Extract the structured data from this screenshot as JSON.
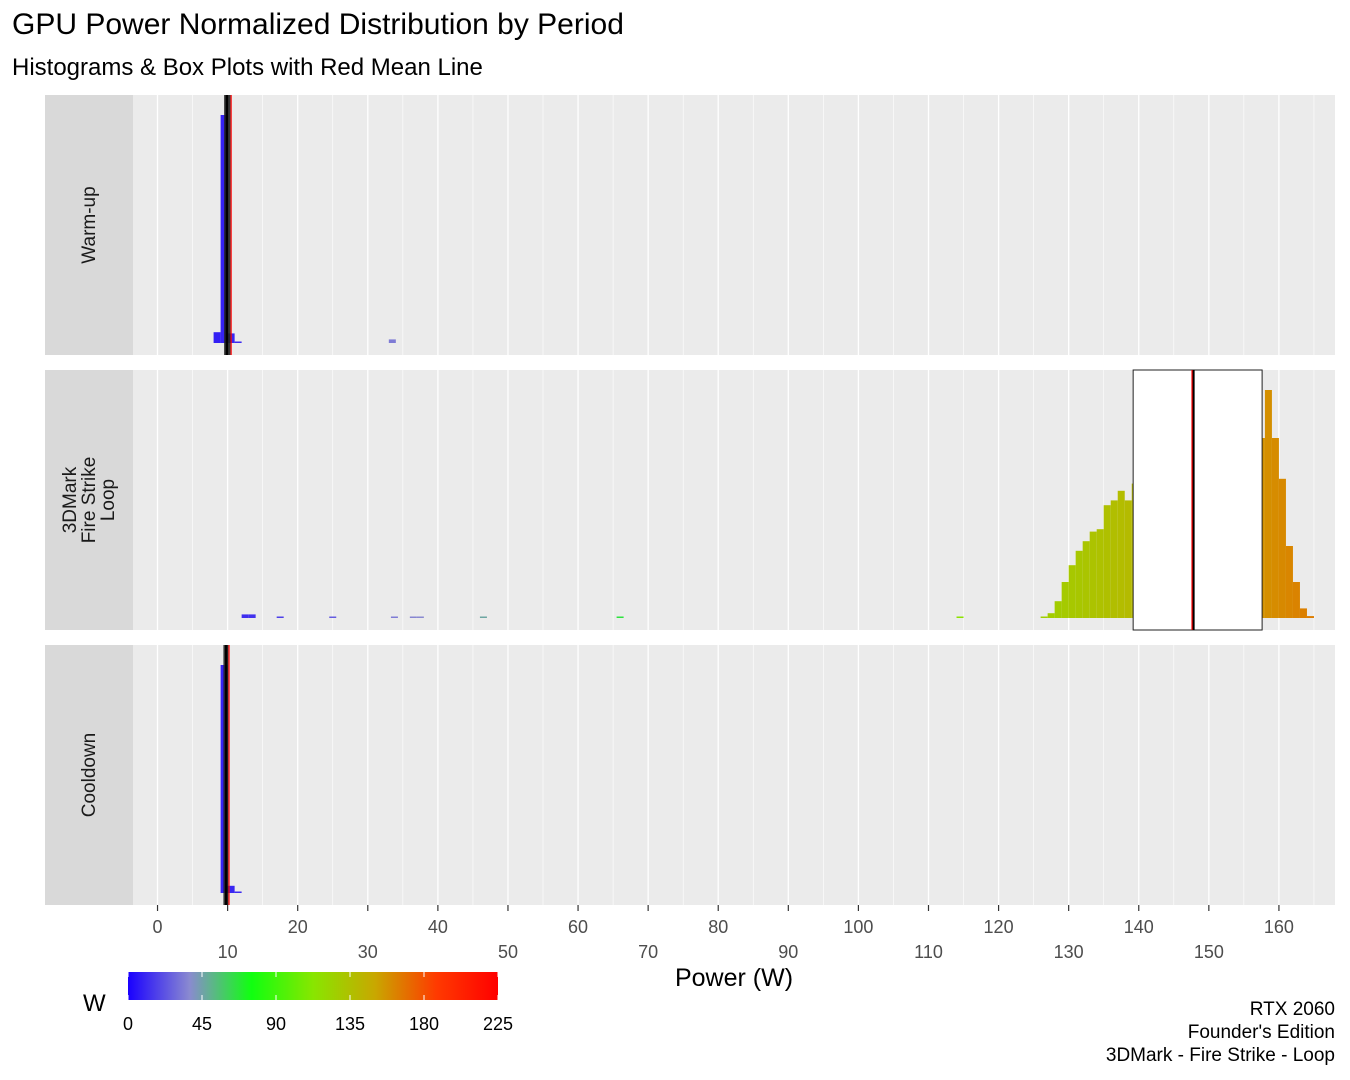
{
  "title": "GPU Power Normalized Distribution by Period",
  "subtitle": "Histograms & Box Plots with Red Mean Line",
  "caption": [
    "RTX 2060",
    "Founder's Edition",
    "3DMark - Fire Strike - Loop"
  ],
  "chart_data": {
    "type": "histogram",
    "xlabel": "Power (W)",
    "xlim": [
      -3.5,
      168
    ],
    "x_ticks": [
      0,
      10,
      20,
      30,
      40,
      50,
      60,
      70,
      80,
      90,
      100,
      110,
      120,
      130,
      140,
      150,
      160
    ],
    "x_tick_labels": [
      "0",
      "10",
      "20",
      "30",
      "40",
      "50",
      "60",
      "70",
      "80",
      "90",
      "100",
      "110",
      "120",
      "130",
      "140",
      "150",
      "160"
    ],
    "grid": true,
    "mean_line_color": "#ff0000",
    "colorbar": {
      "title": "W",
      "min": 0,
      "max": 225,
      "ticks": [
        0,
        45,
        90,
        135,
        180,
        225
      ],
      "tick_labels": [
        "0",
        "45",
        "90",
        "135",
        "180",
        "225"
      ],
      "colors": [
        "#1a00ff",
        "#8a8ad0",
        "#10ff10",
        "#88e600",
        "#c8a800",
        "#ff3a00",
        "#ff0000"
      ],
      "placement": "bottom-left"
    },
    "panels": [
      {
        "label": "Warm-up",
        "label_lines": [
          "Warm-up"
        ],
        "mean": 10.5,
        "box": {
          "q1": 9.7,
          "median": 9.9,
          "q3": 10.1,
          "whisker_low": 9.5,
          "whisker_high": 10.4
        },
        "bins": [
          {
            "x": 8.5,
            "w": 1,
            "h": 0.045
          },
          {
            "x": 9.5,
            "w": 1,
            "h": 0.95
          },
          {
            "x": 10.5,
            "w": 1,
            "h": 0.04
          },
          {
            "x": 11.5,
            "w": 1,
            "h": 0.004
          },
          {
            "x": 33.5,
            "w": 1,
            "h": 0.015
          }
        ]
      },
      {
        "label": "3DMark Fire Strike Loop",
        "label_lines": [
          "3DMark",
          "Fire Strike",
          "Loop"
        ],
        "mean": 147.6,
        "box": {
          "q1": 139.2,
          "median": 147.8,
          "q3": 157.6,
          "whisker_low": 139.2,
          "whisker_high": 157.6
        },
        "bins": [
          {
            "x": 12.5,
            "w": 1,
            "h": 0.015
          },
          {
            "x": 13.5,
            "w": 1,
            "h": 0.015
          },
          {
            "x": 17.5,
            "w": 1,
            "h": 0.004
          },
          {
            "x": 25.0,
            "w": 1,
            "h": 0.004
          },
          {
            "x": 33.8,
            "w": 1,
            "h": 0.004
          },
          {
            "x": 36.5,
            "w": 1,
            "h": 0.004
          },
          {
            "x": 37.5,
            "w": 1,
            "h": 0.004
          },
          {
            "x": 46.5,
            "w": 1,
            "h": 0.004
          },
          {
            "x": 66.0,
            "w": 1,
            "h": 0.003
          },
          {
            "x": 114.5,
            "w": 1,
            "h": 0.006
          },
          {
            "x": 126.5,
            "w": 1,
            "h": 0.004
          },
          {
            "x": 127.5,
            "w": 1,
            "h": 0.02
          },
          {
            "x": 128.5,
            "w": 1,
            "h": 0.07
          },
          {
            "x": 129.5,
            "w": 1,
            "h": 0.15
          },
          {
            "x": 130.5,
            "w": 1,
            "h": 0.22
          },
          {
            "x": 131.5,
            "w": 1,
            "h": 0.28
          },
          {
            "x": 132.5,
            "w": 1,
            "h": 0.32
          },
          {
            "x": 133.5,
            "w": 1,
            "h": 0.36
          },
          {
            "x": 134.5,
            "w": 1,
            "h": 0.37
          },
          {
            "x": 135.5,
            "w": 1,
            "h": 0.47
          },
          {
            "x": 136.5,
            "w": 1,
            "h": 0.49
          },
          {
            "x": 137.5,
            "w": 1,
            "h": 0.53
          },
          {
            "x": 138.5,
            "w": 1,
            "h": 0.49
          },
          {
            "x": 139.5,
            "w": 1,
            "h": 0.56
          },
          {
            "x": 140.5,
            "w": 1,
            "h": 0.45
          },
          {
            "x": 141.5,
            "w": 1,
            "h": 0.38
          },
          {
            "x": 142.5,
            "w": 1,
            "h": 0.47
          },
          {
            "x": 143.5,
            "w": 1,
            "h": 0.38
          },
          {
            "x": 144.5,
            "w": 1,
            "h": 0.47
          },
          {
            "x": 145.5,
            "w": 1,
            "h": 0.46
          },
          {
            "x": 146.5,
            "w": 1,
            "h": 0.38
          },
          {
            "x": 147.5,
            "w": 1,
            "h": 0.3
          },
          {
            "x": 148.5,
            "w": 1,
            "h": 0.33
          },
          {
            "x": 149.5,
            "w": 1,
            "h": 0.33
          },
          {
            "x": 150.5,
            "w": 1,
            "h": 0.29
          },
          {
            "x": 151.5,
            "w": 1,
            "h": 0.32
          },
          {
            "x": 152.5,
            "w": 1,
            "h": 0.28
          },
          {
            "x": 153.5,
            "w": 1,
            "h": 0.31
          },
          {
            "x": 154.5,
            "w": 1,
            "h": 0.29
          },
          {
            "x": 155.5,
            "w": 1,
            "h": 0.3
          },
          {
            "x": 156.5,
            "w": 1,
            "h": 0.31
          },
          {
            "x": 157.5,
            "w": 1,
            "h": 0.75
          },
          {
            "x": 158.5,
            "w": 1,
            "h": 0.95
          },
          {
            "x": 159.5,
            "w": 1,
            "h": 0.75
          },
          {
            "x": 160.5,
            "w": 1,
            "h": 0.58
          },
          {
            "x": 161.5,
            "w": 1,
            "h": 0.3
          },
          {
            "x": 162.5,
            "w": 1,
            "h": 0.15
          },
          {
            "x": 163.5,
            "w": 1,
            "h": 0.04
          },
          {
            "x": 164.5,
            "w": 1,
            "h": 0.008
          }
        ]
      },
      {
        "label": "Cooldown",
        "label_lines": [
          "Cooldown"
        ],
        "mean": 10.2,
        "box": {
          "q1": 9.6,
          "median": 9.8,
          "q3": 10.0,
          "whisker_low": 9.4,
          "whisker_high": 10.1
        },
        "bins": [
          {
            "x": 9.5,
            "w": 1,
            "h": 0.95
          },
          {
            "x": 10.5,
            "w": 1,
            "h": 0.03
          },
          {
            "x": 11.5,
            "w": 1,
            "h": 0.004
          }
        ]
      }
    ]
  }
}
